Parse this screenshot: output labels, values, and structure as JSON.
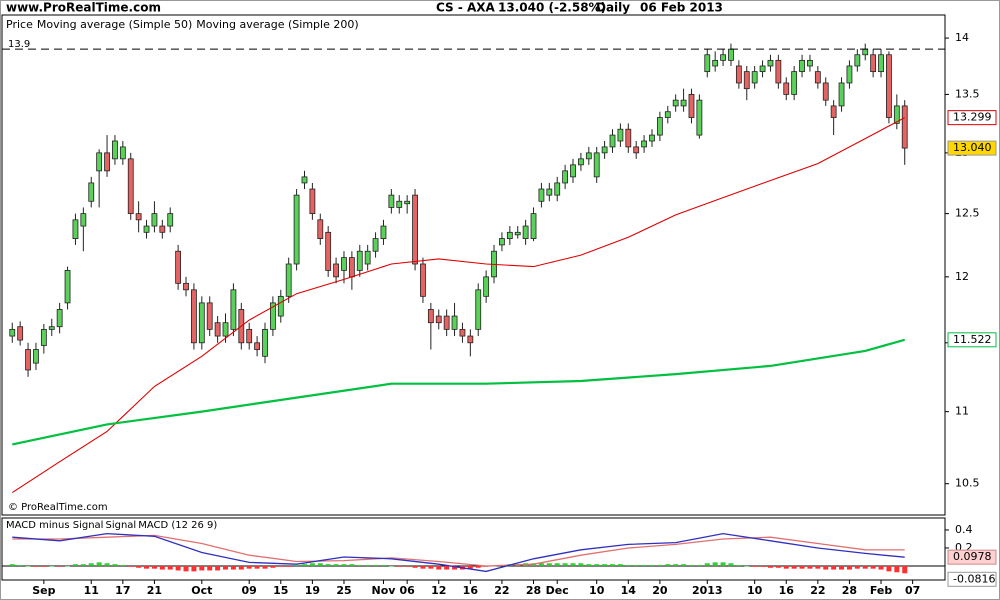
{
  "header": {
    "site": "www.ProRealTime.com",
    "symbol": "CS - AXA",
    "quote": "13.040 (-2.58%)",
    "period": "Daily",
    "date": "06 Feb 2013"
  },
  "watermark": "© ProRealTime.com",
  "chart_data": [
    {
      "type": "candlestick",
      "log_scale": true,
      "xlim": [
        -1.3,
        118.1
      ],
      "ylim": [
        10.29,
        14.21
      ],
      "yticks": [
        10.5,
        11,
        11.5,
        12,
        12.5,
        13,
        13.5,
        14
      ],
      "hline": 13.9,
      "series": [
        {
          "name": "Price",
          "up_color": "#5ad25a",
          "down_color": "#e46464",
          "price_label": "13.040",
          "open": [
            11.55,
            11.62,
            11.45,
            11.35,
            11.48,
            11.6,
            11.62,
            11.8,
            12.3,
            12.4,
            12.6,
            12.85,
            13.0,
            12.95,
            12.95,
            12.95,
            12.5,
            12.35,
            12.4,
            12.4,
            12.4,
            12.2,
            11.95,
            11.9,
            11.5,
            11.8,
            11.65,
            11.55,
            11.6,
            11.75,
            11.6,
            11.5,
            11.4,
            11.6,
            11.7,
            11.85,
            12.1,
            12.75,
            12.7,
            12.45,
            12.35,
            12.1,
            12.05,
            12.15,
            12.05,
            12.1,
            12.2,
            12.3,
            12.55,
            12.55,
            12.58,
            12.65,
            12.1,
            11.75,
            11.7,
            11.7,
            11.6,
            11.6,
            11.55,
            11.6,
            11.85,
            12.0,
            12.25,
            12.3,
            12.33,
            12.3,
            12.3,
            12.6,
            12.65,
            12.65,
            12.75,
            12.8,
            12.9,
            12.95,
            12.8,
            13.0,
            13.05,
            13.1,
            13.2,
            13.05,
            13.05,
            13.1,
            13.15,
            13.3,
            13.4,
            13.4,
            13.5,
            13.15,
            13.7,
            13.75,
            13.8,
            13.8,
            13.75,
            13.7,
            13.6,
            13.7,
            13.75,
            13.8,
            13.6,
            13.5,
            13.7,
            13.75,
            13.7,
            13.6,
            13.4,
            13.4,
            13.6,
            13.75,
            13.85,
            13.85,
            13.7,
            13.85,
            13.25,
            13.4
          ],
          "high": [
            11.65,
            11.66,
            11.5,
            11.5,
            11.64,
            11.68,
            11.8,
            12.08,
            12.5,
            12.55,
            12.8,
            13.03,
            13.15,
            13.15,
            13.1,
            13.0,
            12.6,
            12.45,
            12.6,
            12.45,
            12.55,
            12.25,
            12.0,
            11.95,
            11.85,
            11.85,
            11.7,
            11.72,
            11.95,
            11.8,
            11.65,
            11.55,
            11.65,
            11.85,
            11.9,
            12.15,
            12.7,
            12.85,
            12.75,
            12.5,
            12.4,
            12.15,
            12.2,
            12.2,
            12.25,
            12.25,
            12.35,
            12.45,
            12.7,
            12.65,
            12.65,
            12.7,
            12.15,
            11.8,
            11.75,
            11.75,
            11.8,
            11.65,
            11.6,
            11.95,
            12.05,
            12.25,
            12.35,
            12.4,
            12.4,
            12.45,
            12.55,
            12.75,
            12.75,
            12.8,
            12.9,
            12.95,
            13.0,
            13.05,
            13.05,
            13.1,
            13.2,
            13.25,
            13.25,
            13.1,
            13.15,
            13.2,
            13.35,
            13.4,
            13.5,
            13.55,
            13.55,
            13.5,
            13.9,
            13.88,
            13.9,
            13.95,
            13.8,
            13.75,
            13.75,
            13.8,
            13.85,
            13.85,
            13.65,
            13.75,
            13.85,
            13.85,
            13.75,
            13.65,
            13.45,
            13.65,
            13.8,
            13.9,
            13.95,
            13.9,
            13.9,
            13.88,
            13.5,
            13.45
          ],
          "low": [
            11.5,
            11.48,
            11.25,
            11.3,
            11.42,
            11.55,
            11.57,
            11.75,
            12.25,
            12.2,
            12.55,
            12.55,
            12.8,
            12.9,
            12.9,
            12.45,
            12.35,
            12.3,
            12.35,
            12.3,
            12.35,
            11.9,
            11.85,
            11.45,
            11.45,
            11.55,
            11.5,
            11.5,
            11.55,
            11.45,
            11.45,
            11.4,
            11.35,
            11.55,
            11.65,
            11.8,
            12.05,
            12.7,
            12.45,
            12.25,
            12.0,
            11.95,
            11.95,
            11.9,
            12.0,
            12.05,
            12.15,
            12.25,
            12.5,
            12.5,
            12.5,
            12.05,
            11.8,
            11.45,
            11.6,
            11.55,
            11.55,
            11.5,
            11.4,
            11.55,
            11.8,
            11.95,
            12.2,
            12.25,
            12.3,
            12.25,
            12.28,
            12.55,
            12.6,
            12.6,
            12.7,
            12.75,
            12.85,
            12.9,
            12.75,
            12.95,
            13.0,
            13.05,
            13.0,
            12.95,
            13.0,
            13.05,
            13.1,
            13.25,
            13.35,
            13.35,
            13.25,
            13.12,
            13.65,
            13.7,
            13.75,
            13.75,
            13.55,
            13.45,
            13.55,
            13.65,
            13.7,
            13.55,
            13.45,
            13.45,
            13.65,
            13.7,
            13.55,
            13.4,
            13.15,
            13.35,
            13.55,
            13.7,
            13.8,
            13.65,
            13.65,
            13.25,
            13.2,
            12.9
          ],
          "close": [
            11.6,
            11.52,
            11.3,
            11.45,
            11.6,
            11.62,
            11.75,
            12.05,
            12.45,
            12.5,
            12.75,
            13.0,
            12.85,
            13.1,
            13.05,
            12.5,
            12.45,
            12.4,
            12.5,
            12.35,
            12.5,
            11.95,
            11.9,
            11.5,
            11.8,
            11.6,
            11.55,
            11.65,
            11.9,
            11.5,
            11.5,
            11.45,
            11.6,
            11.8,
            11.85,
            12.1,
            12.65,
            12.8,
            12.5,
            12.3,
            12.05,
            12.0,
            12.15,
            12.0,
            12.2,
            12.2,
            12.3,
            12.4,
            12.65,
            12.6,
            12.6,
            12.1,
            11.85,
            11.65,
            11.65,
            11.6,
            11.7,
            11.55,
            11.5,
            11.9,
            12.0,
            12.2,
            12.3,
            12.35,
            12.35,
            12.4,
            12.5,
            12.7,
            12.7,
            12.75,
            12.85,
            12.9,
            12.95,
            13.0,
            13.0,
            13.05,
            13.15,
            13.2,
            13.05,
            13.0,
            13.1,
            13.15,
            13.3,
            13.35,
            13.45,
            13.45,
            13.3,
            13.45,
            13.85,
            13.8,
            13.85,
            13.9,
            13.6,
            13.55,
            13.7,
            13.75,
            13.8,
            13.6,
            13.5,
            13.7,
            13.8,
            13.8,
            13.6,
            13.45,
            13.3,
            13.6,
            13.75,
            13.85,
            13.9,
            13.7,
            13.85,
            13.3,
            13.4,
            13.04
          ]
        },
        {
          "name": "Moving average (Simple 50)",
          "color": "#e00000",
          "x": [
            0,
            6,
            12,
            18,
            24,
            30,
            36,
            42,
            48,
            54,
            60,
            66,
            72,
            78,
            84,
            90,
            96,
            102,
            108,
            113
          ],
          "values": [
            10.44,
            10.65,
            10.86,
            11.18,
            11.4,
            11.67,
            11.87,
            11.98,
            12.1,
            12.14,
            12.1,
            12.08,
            12.17,
            12.31,
            12.49,
            12.63,
            12.77,
            12.91,
            13.12,
            13.299
          ]
        },
        {
          "name": "Moving average (Simple 200)",
          "color": "#00c040",
          "x": [
            0,
            12,
            24,
            36,
            48,
            60,
            72,
            84,
            96,
            108,
            113
          ],
          "values": [
            10.77,
            10.91,
            11.0,
            11.1,
            11.2,
            11.2,
            11.22,
            11.27,
            11.33,
            11.44,
            11.522
          ]
        }
      ]
    },
    {
      "type": "macd",
      "xlim": [
        -1.3,
        118.1
      ],
      "ylim": [
        -0.156,
        0.533
      ],
      "yticks": [
        0.2,
        0.4
      ],
      "xticks": [
        {
          "value": 4,
          "label": "Sep"
        },
        {
          "value": 10,
          "label": "11"
        },
        {
          "value": 14,
          "label": "17"
        },
        {
          "value": 18,
          "label": "21"
        },
        {
          "value": 24,
          "label": "Oct"
        },
        {
          "value": 30,
          "label": "09"
        },
        {
          "value": 34,
          "label": "15"
        },
        {
          "value": 38,
          "label": "19"
        },
        {
          "value": 42,
          "label": "25"
        },
        {
          "value": 47,
          "label": "Nov"
        },
        {
          "value": 50,
          "label": "06"
        },
        {
          "value": 54,
          "label": "12"
        },
        {
          "value": 58,
          "label": "16"
        },
        {
          "value": 62,
          "label": "22"
        },
        {
          "value": 66,
          "label": "28"
        },
        {
          "value": 69,
          "label": "Dec"
        },
        {
          "value": 74,
          "label": "10"
        },
        {
          "value": 78,
          "label": "14"
        },
        {
          "value": 82,
          "label": "20"
        },
        {
          "value": 88,
          "label": "2013"
        },
        {
          "value": 94,
          "label": "10"
        },
        {
          "value": 98,
          "label": "16"
        },
        {
          "value": 102,
          "label": "22"
        },
        {
          "value": 106,
          "label": "28"
        },
        {
          "value": 110,
          "label": "Feb"
        },
        {
          "value": 114,
          "label": "07"
        }
      ],
      "series": [
        {
          "name": "MACD minus Signal",
          "color": "#ff3030",
          "up_color": "#33cc33",
          "values": [
            0.02,
            0.01,
            0.0,
            -0.01,
            -0.01,
            0.0,
            -0.01,
            0.0,
            0.02,
            0.02,
            0.03,
            0.04,
            0.03,
            0.02,
            0.01,
            -0.01,
            -0.02,
            -0.03,
            -0.03,
            -0.04,
            -0.04,
            -0.05,
            -0.06,
            -0.06,
            -0.05,
            -0.05,
            -0.05,
            -0.04,
            -0.04,
            -0.04,
            -0.03,
            -0.03,
            -0.03,
            -0.02,
            -0.01,
            -0.01,
            0.01,
            0.02,
            0.03,
            0.03,
            0.02,
            0.02,
            0.02,
            0.02,
            0.01,
            0.01,
            0.01,
            0.01,
            0.0,
            -0.01,
            -0.01,
            -0.02,
            -0.03,
            -0.03,
            -0.04,
            -0.04,
            -0.04,
            -0.04,
            -0.03,
            -0.02,
            -0.01,
            0.0,
            0.01,
            0.02,
            0.02,
            0.03,
            0.03,
            0.03,
            0.03,
            0.03,
            0.03,
            0.03,
            0.03,
            0.02,
            0.02,
            0.02,
            0.02,
            0.02,
            0.01,
            0.01,
            0.01,
            0.01,
            0.01,
            0.02,
            0.02,
            0.02,
            0.01,
            0.01,
            0.03,
            0.04,
            0.04,
            0.03,
            0.01,
            0.0,
            -0.01,
            -0.01,
            -0.02,
            -0.02,
            -0.03,
            -0.03,
            -0.03,
            -0.03,
            -0.03,
            -0.04,
            -0.04,
            -0.04,
            -0.04,
            -0.03,
            -0.03,
            -0.03,
            -0.04,
            -0.06,
            -0.07,
            -0.0816
          ]
        },
        {
          "name": "Signal",
          "color": "#e07070",
          "x": [
            0,
            6,
            12,
            18,
            24,
            30,
            36,
            42,
            48,
            54,
            60,
            66,
            72,
            78,
            84,
            90,
            96,
            102,
            108,
            113
          ],
          "values": [
            0.3,
            0.3,
            0.32,
            0.34,
            0.25,
            0.12,
            0.05,
            0.06,
            0.09,
            0.05,
            0.0,
            0.02,
            0.12,
            0.2,
            0.24,
            0.3,
            0.32,
            0.25,
            0.18,
            0.179
          ]
        },
        {
          "name": "MACD (12 26 9)",
          "color": "#3030c0",
          "x": [
            0,
            6,
            12,
            18,
            24,
            30,
            36,
            42,
            48,
            54,
            60,
            66,
            72,
            78,
            84,
            90,
            96,
            102,
            108,
            113
          ],
          "values": [
            0.32,
            0.28,
            0.36,
            0.33,
            0.15,
            0.04,
            0.02,
            0.1,
            0.08,
            0.02,
            -0.06,
            0.08,
            0.18,
            0.24,
            0.26,
            0.36,
            0.28,
            0.2,
            0.14,
            0.0978
          ]
        }
      ]
    }
  ]
}
